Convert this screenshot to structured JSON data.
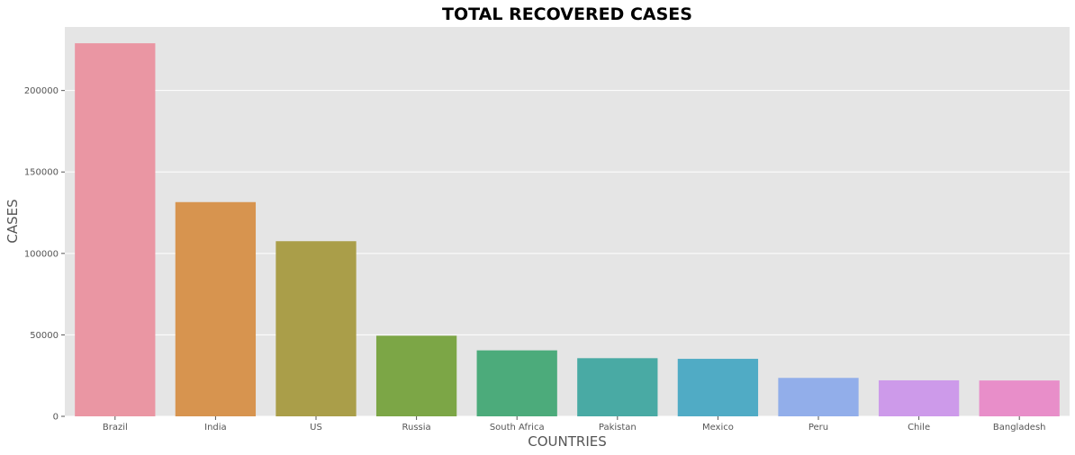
{
  "chart_data": {
    "type": "bar",
    "title": "TOTAL RECOVERED CASES",
    "xlabel": "COUNTRIES",
    "ylabel": "CASES",
    "categories": [
      "Brazil",
      "India",
      "US",
      "Russia",
      "South Africa",
      "Pakistan",
      "Mexico",
      "Peru",
      "Chile",
      "Bangladesh"
    ],
    "values": [
      229000,
      131500,
      107500,
      49500,
      40500,
      35700,
      35300,
      23600,
      22100,
      22000
    ],
    "ylim": [
      0,
      239000
    ],
    "yticks": [
      0,
      50000,
      100000,
      150000,
      200000
    ],
    "ytick_labels": [
      "0",
      "50000",
      "100000",
      "150000",
      "200000"
    ],
    "grid": true,
    "background_color": "#e5e5e5",
    "grid_color": "#ffffff",
    "colors": [
      "#ea96a3",
      "#d7944f",
      "#aa9e49",
      "#7ca646",
      "#4cab7b",
      "#49aaa4",
      "#50abc5",
      "#92aeea",
      "#cd9aea",
      "#e88ec9"
    ]
  }
}
